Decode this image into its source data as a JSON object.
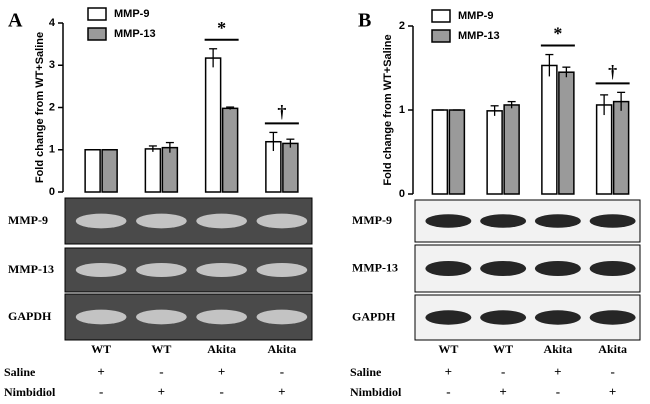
{
  "chart_data": [
    {
      "type": "bar",
      "panel_label": "A",
      "ylabel": "Fold change from WT+Saline",
      "categories": [
        "WT",
        "WT",
        "Akita",
        "Akita"
      ],
      "series": [
        {
          "name": "MMP-9",
          "color": "#ffffff",
          "values": [
            1,
            1.02,
            3.17,
            1.19
          ],
          "errors": [
            0,
            0.07,
            0.22,
            0.22
          ]
        },
        {
          "name": "MMP-13",
          "color": "#9a9a9a",
          "values": [
            1,
            1.05,
            1.98,
            1.15
          ],
          "errors": [
            0,
            0.12,
            0.03,
            0.1
          ]
        }
      ],
      "annotations": [
        null,
        null,
        "*",
        "†"
      ],
      "ylim": [
        0,
        4
      ],
      "yticks": [
        0,
        1,
        2,
        3,
        4
      ],
      "blot_rows": [
        "MMP-9",
        "MMP-13",
        "GAPDH"
      ],
      "treatments": [
        {
          "name": "Saline",
          "marks": [
            "+",
            "-",
            "+",
            "-"
          ]
        },
        {
          "name": "Nimbidiol",
          "marks": [
            "-",
            "+",
            "-",
            "+"
          ]
        }
      ]
    },
    {
      "type": "bar",
      "panel_label": "B",
      "ylabel": "Fold change from WT+Saline",
      "categories": [
        "WT",
        "WT",
        "Akita",
        "Akita"
      ],
      "series": [
        {
          "name": "MMP-9",
          "color": "#ffffff",
          "values": [
            1,
            0.99,
            1.53,
            1.06
          ],
          "errors": [
            0,
            0.06,
            0.13,
            0.12
          ]
        },
        {
          "name": "MMP-13",
          "color": "#9a9a9a",
          "values": [
            1,
            1.06,
            1.45,
            1.1
          ],
          "errors": [
            0,
            0.04,
            0.06,
            0.11
          ]
        }
      ],
      "annotations": [
        null,
        null,
        "*",
        "†"
      ],
      "ylim": [
        0,
        2
      ],
      "yticks": [
        0,
        1,
        2
      ],
      "blot_rows": [
        "MMP-9",
        "MMP-13",
        "GAPDH"
      ],
      "treatments": [
        {
          "name": "Saline",
          "marks": [
            "+",
            "-",
            "+",
            "-"
          ]
        },
        {
          "name": "Nimbidiol",
          "marks": [
            "-",
            "+",
            "-",
            "+"
          ]
        }
      ]
    }
  ]
}
